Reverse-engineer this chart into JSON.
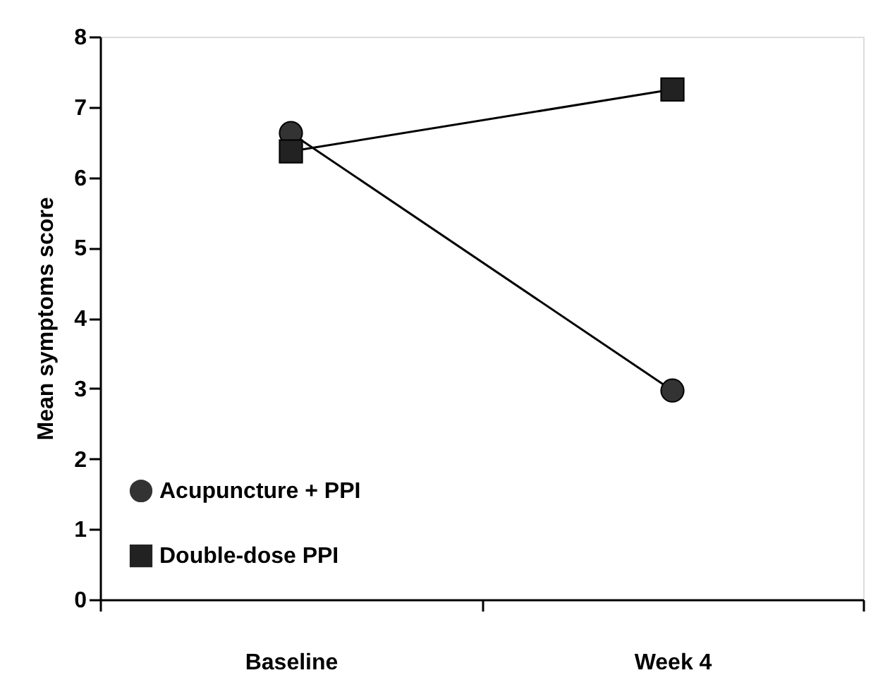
{
  "chart_data": {
    "type": "line",
    "ylabel": "Mean symptoms score",
    "categories": [
      "Baseline",
      "Week 4"
    ],
    "series": [
      {
        "name": "Acupuncture + PPI",
        "color": "#333333",
        "marker": "circle",
        "values": [
          6.63,
          2.97
        ]
      },
      {
        "name": "Double-dose PPI",
        "color": "#222222",
        "marker": "square",
        "values": [
          6.37,
          7.25
        ]
      }
    ],
    "ylim": [
      0,
      8
    ],
    "yticks": [
      0,
      1,
      2,
      3,
      4,
      5,
      6,
      7,
      8
    ],
    "grid": false,
    "legend": "bottom left",
    "line_style": "solid"
  }
}
